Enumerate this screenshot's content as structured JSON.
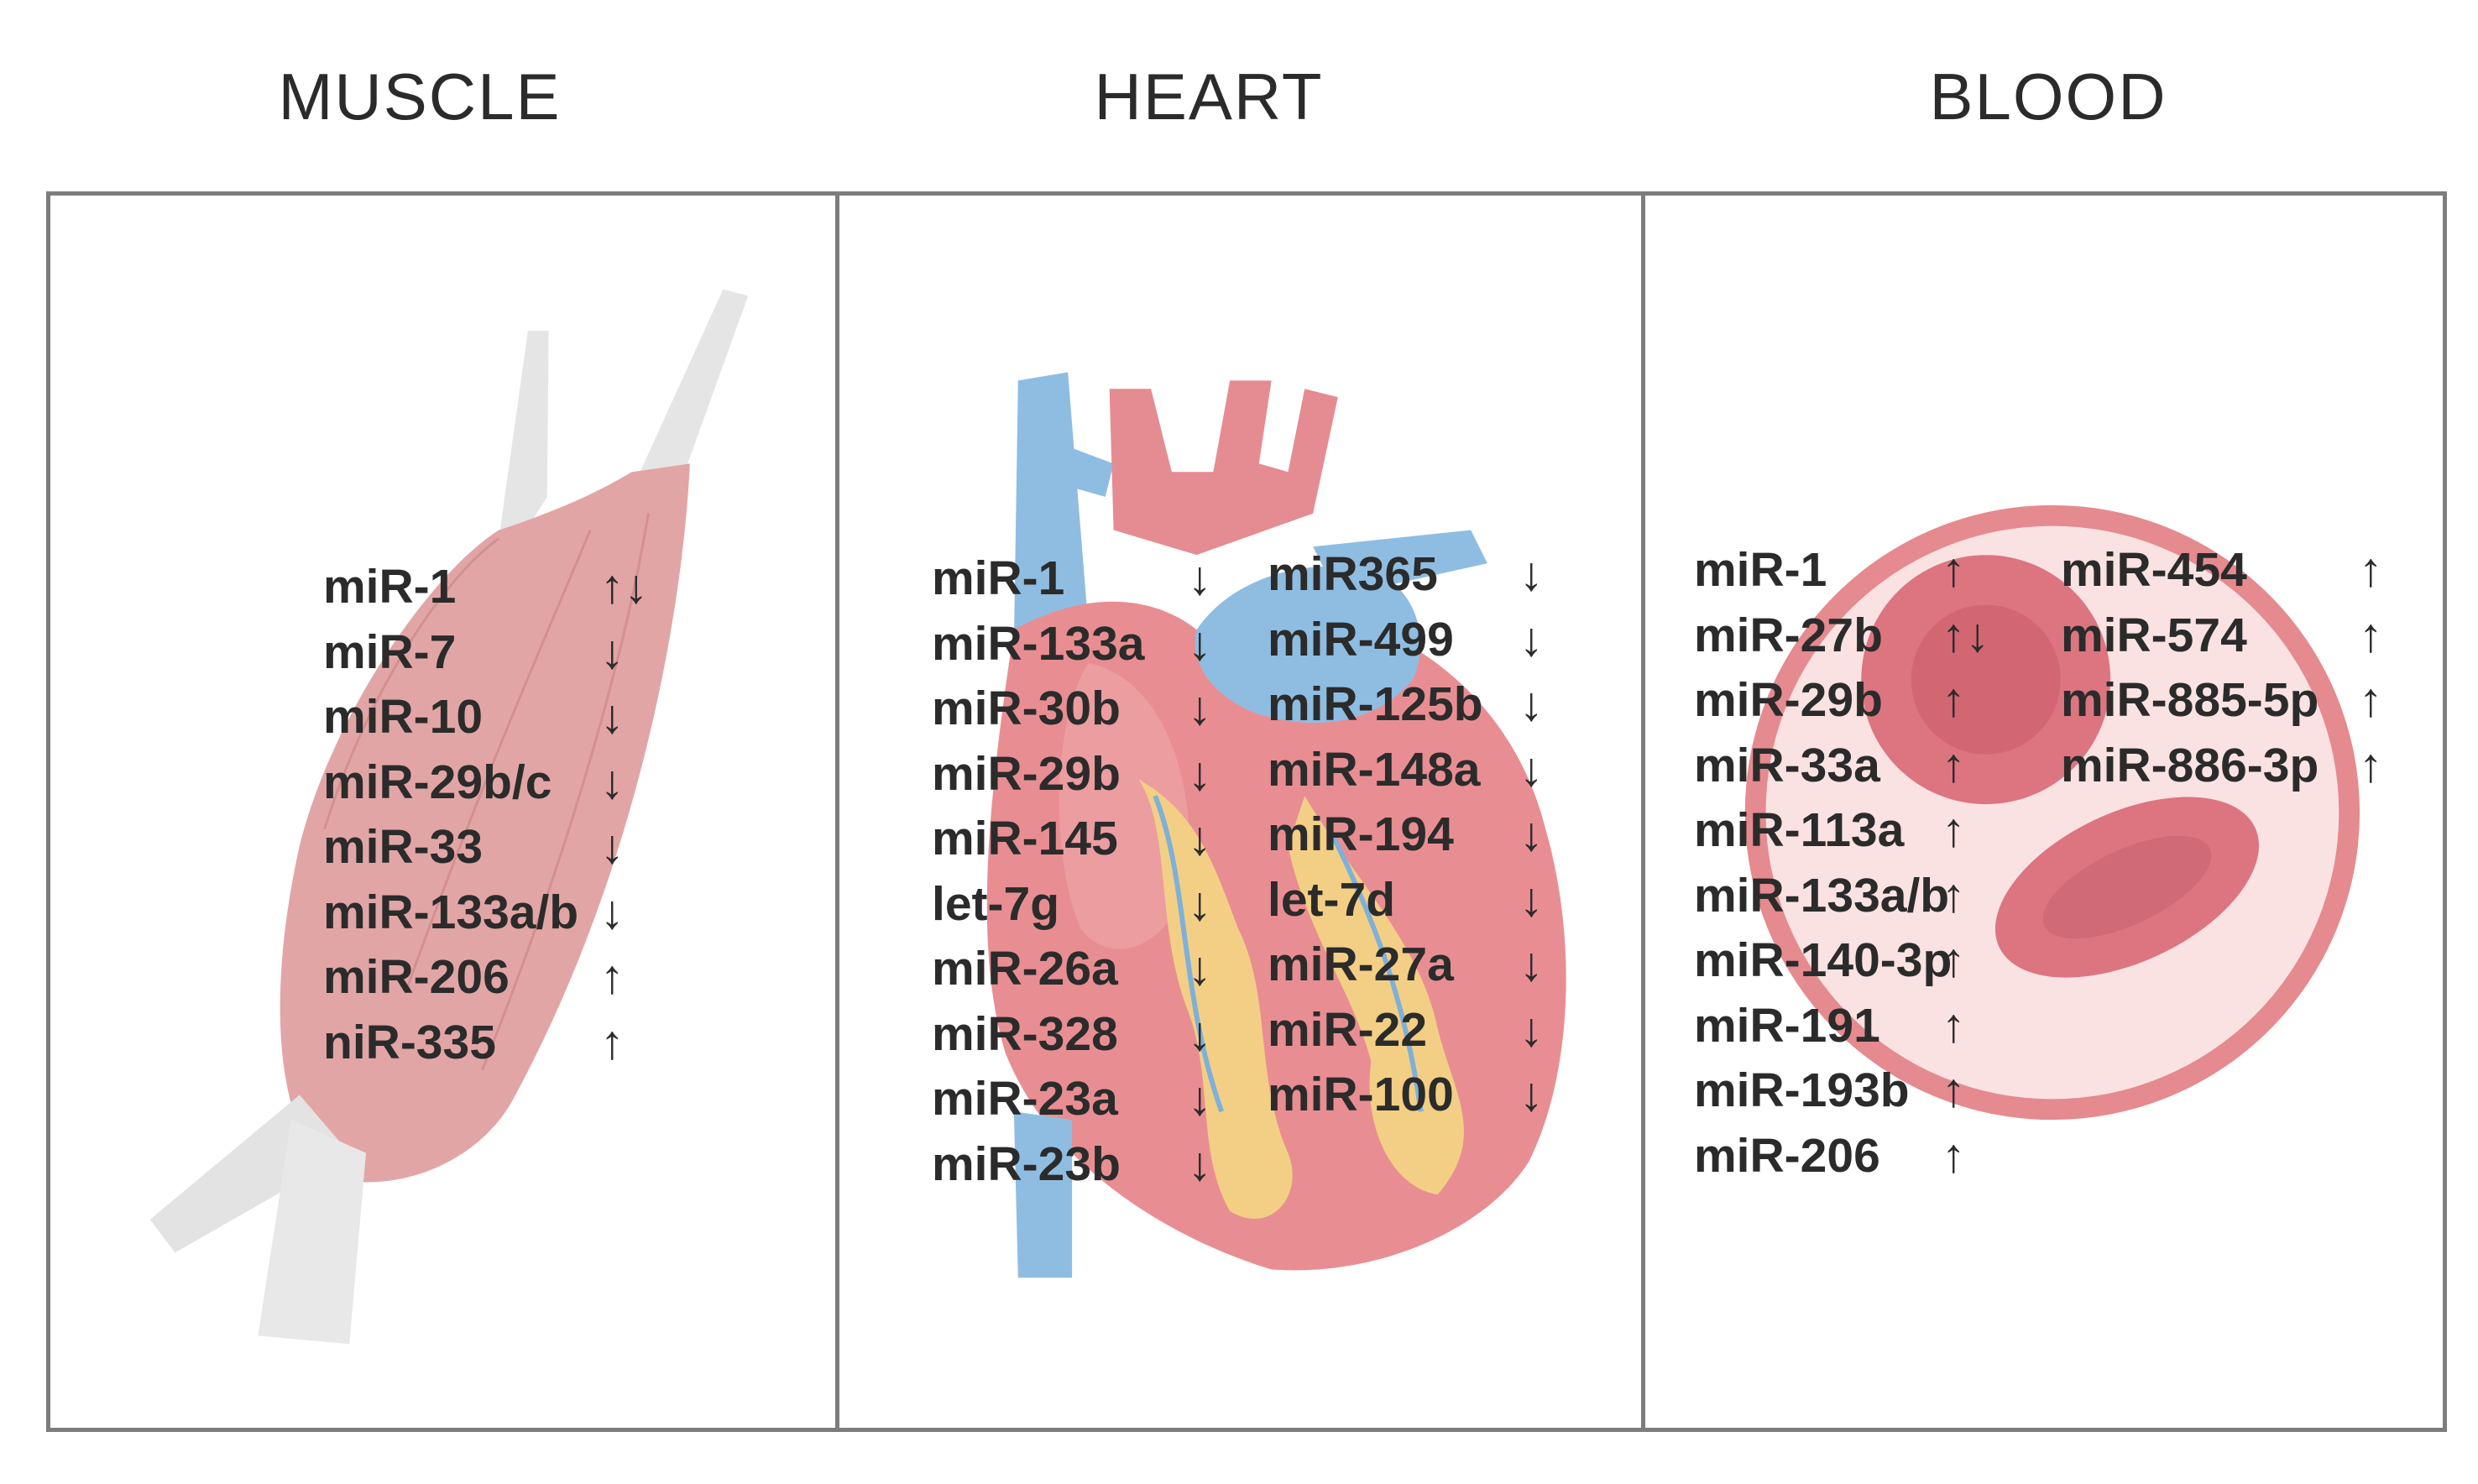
{
  "headers": {
    "muscle": "MUSCLE",
    "heart": "HEART",
    "blood": "BLOOD"
  },
  "colors": {
    "muscle": "#e2a0a0",
    "tendon": "#e2e2e2",
    "heart_red": "#e58f93",
    "heart_vein": "#8cbbe0",
    "fat": "#f4cf84",
    "cell_membrane": "#e4888c",
    "cell_fill": "#fbe3e3",
    "nucleus": "#d96f78",
    "panel_border": "#7d7d7d"
  },
  "muscle": {
    "items": [
      {
        "name": "miR-1",
        "dir": "↑↓"
      },
      {
        "name": "miR-7",
        "dir": "↓"
      },
      {
        "name": "miR-10",
        "dir": "↓"
      },
      {
        "name": "miR-29b/c",
        "dir": "↓"
      },
      {
        "name": "miR-33",
        "dir": "↓"
      },
      {
        "name": "miR-133a/b",
        "dir": "↓"
      },
      {
        "name": "miR-206",
        "dir": "↑"
      },
      {
        "name": "niR-335",
        "dir": "↑"
      }
    ]
  },
  "heart": {
    "col1": [
      {
        "name": "miR-1",
        "dir": "↓"
      },
      {
        "name": "miR-133a",
        "dir": "↓"
      },
      {
        "name": "miR-30b",
        "dir": "↓"
      },
      {
        "name": "miR-29b",
        "dir": "↓"
      },
      {
        "name": "miR-145",
        "dir": "↓"
      },
      {
        "name": "let-7g",
        "dir": "↓"
      },
      {
        "name": "miR-26a",
        "dir": "↓"
      },
      {
        "name": "miR-328",
        "dir": "↓"
      },
      {
        "name": "miR-23a",
        "dir": "↓"
      },
      {
        "name": "miR-23b",
        "dir": "↓"
      }
    ],
    "col2": [
      {
        "name": "miR365",
        "dir": "↓"
      },
      {
        "name": "miR-499",
        "dir": "↓"
      },
      {
        "name": "miR-125b",
        "dir": "↓"
      },
      {
        "name": "miR-148a",
        "dir": "↓"
      },
      {
        "name": "miR-194",
        "dir": "↓"
      },
      {
        "name": "let-7d",
        "dir": "↓"
      },
      {
        "name": "miR-27a",
        "dir": "↓"
      },
      {
        "name": "miR-22",
        "dir": "↓"
      },
      {
        "name": "miR-100",
        "dir": "↓"
      }
    ]
  },
  "blood": {
    "col1": [
      {
        "name": "miR-1",
        "dir": "↑"
      },
      {
        "name": "miR-27b",
        "dir": "↑↓"
      },
      {
        "name": "miR-29b",
        "dir": "↑"
      },
      {
        "name": "miR-33a",
        "dir": "↑"
      },
      {
        "name": "miR-113a",
        "dir": "↑"
      },
      {
        "name": "miR-133a/b",
        "dir": "↑"
      },
      {
        "name": "miR-140-3p",
        "dir": "↑"
      },
      {
        "name": "miR-191",
        "dir": "↑"
      },
      {
        "name": "miR-193b",
        "dir": "↑"
      },
      {
        "name": "miR-206",
        "dir": "↑"
      }
    ],
    "col2": [
      {
        "name": "miR-454",
        "dir": "↑"
      },
      {
        "name": "miR-574",
        "dir": "↑"
      },
      {
        "name": "miR-885-5p",
        "dir": "↑"
      },
      {
        "name": "miR-886-3p",
        "dir": "↑"
      }
    ]
  }
}
